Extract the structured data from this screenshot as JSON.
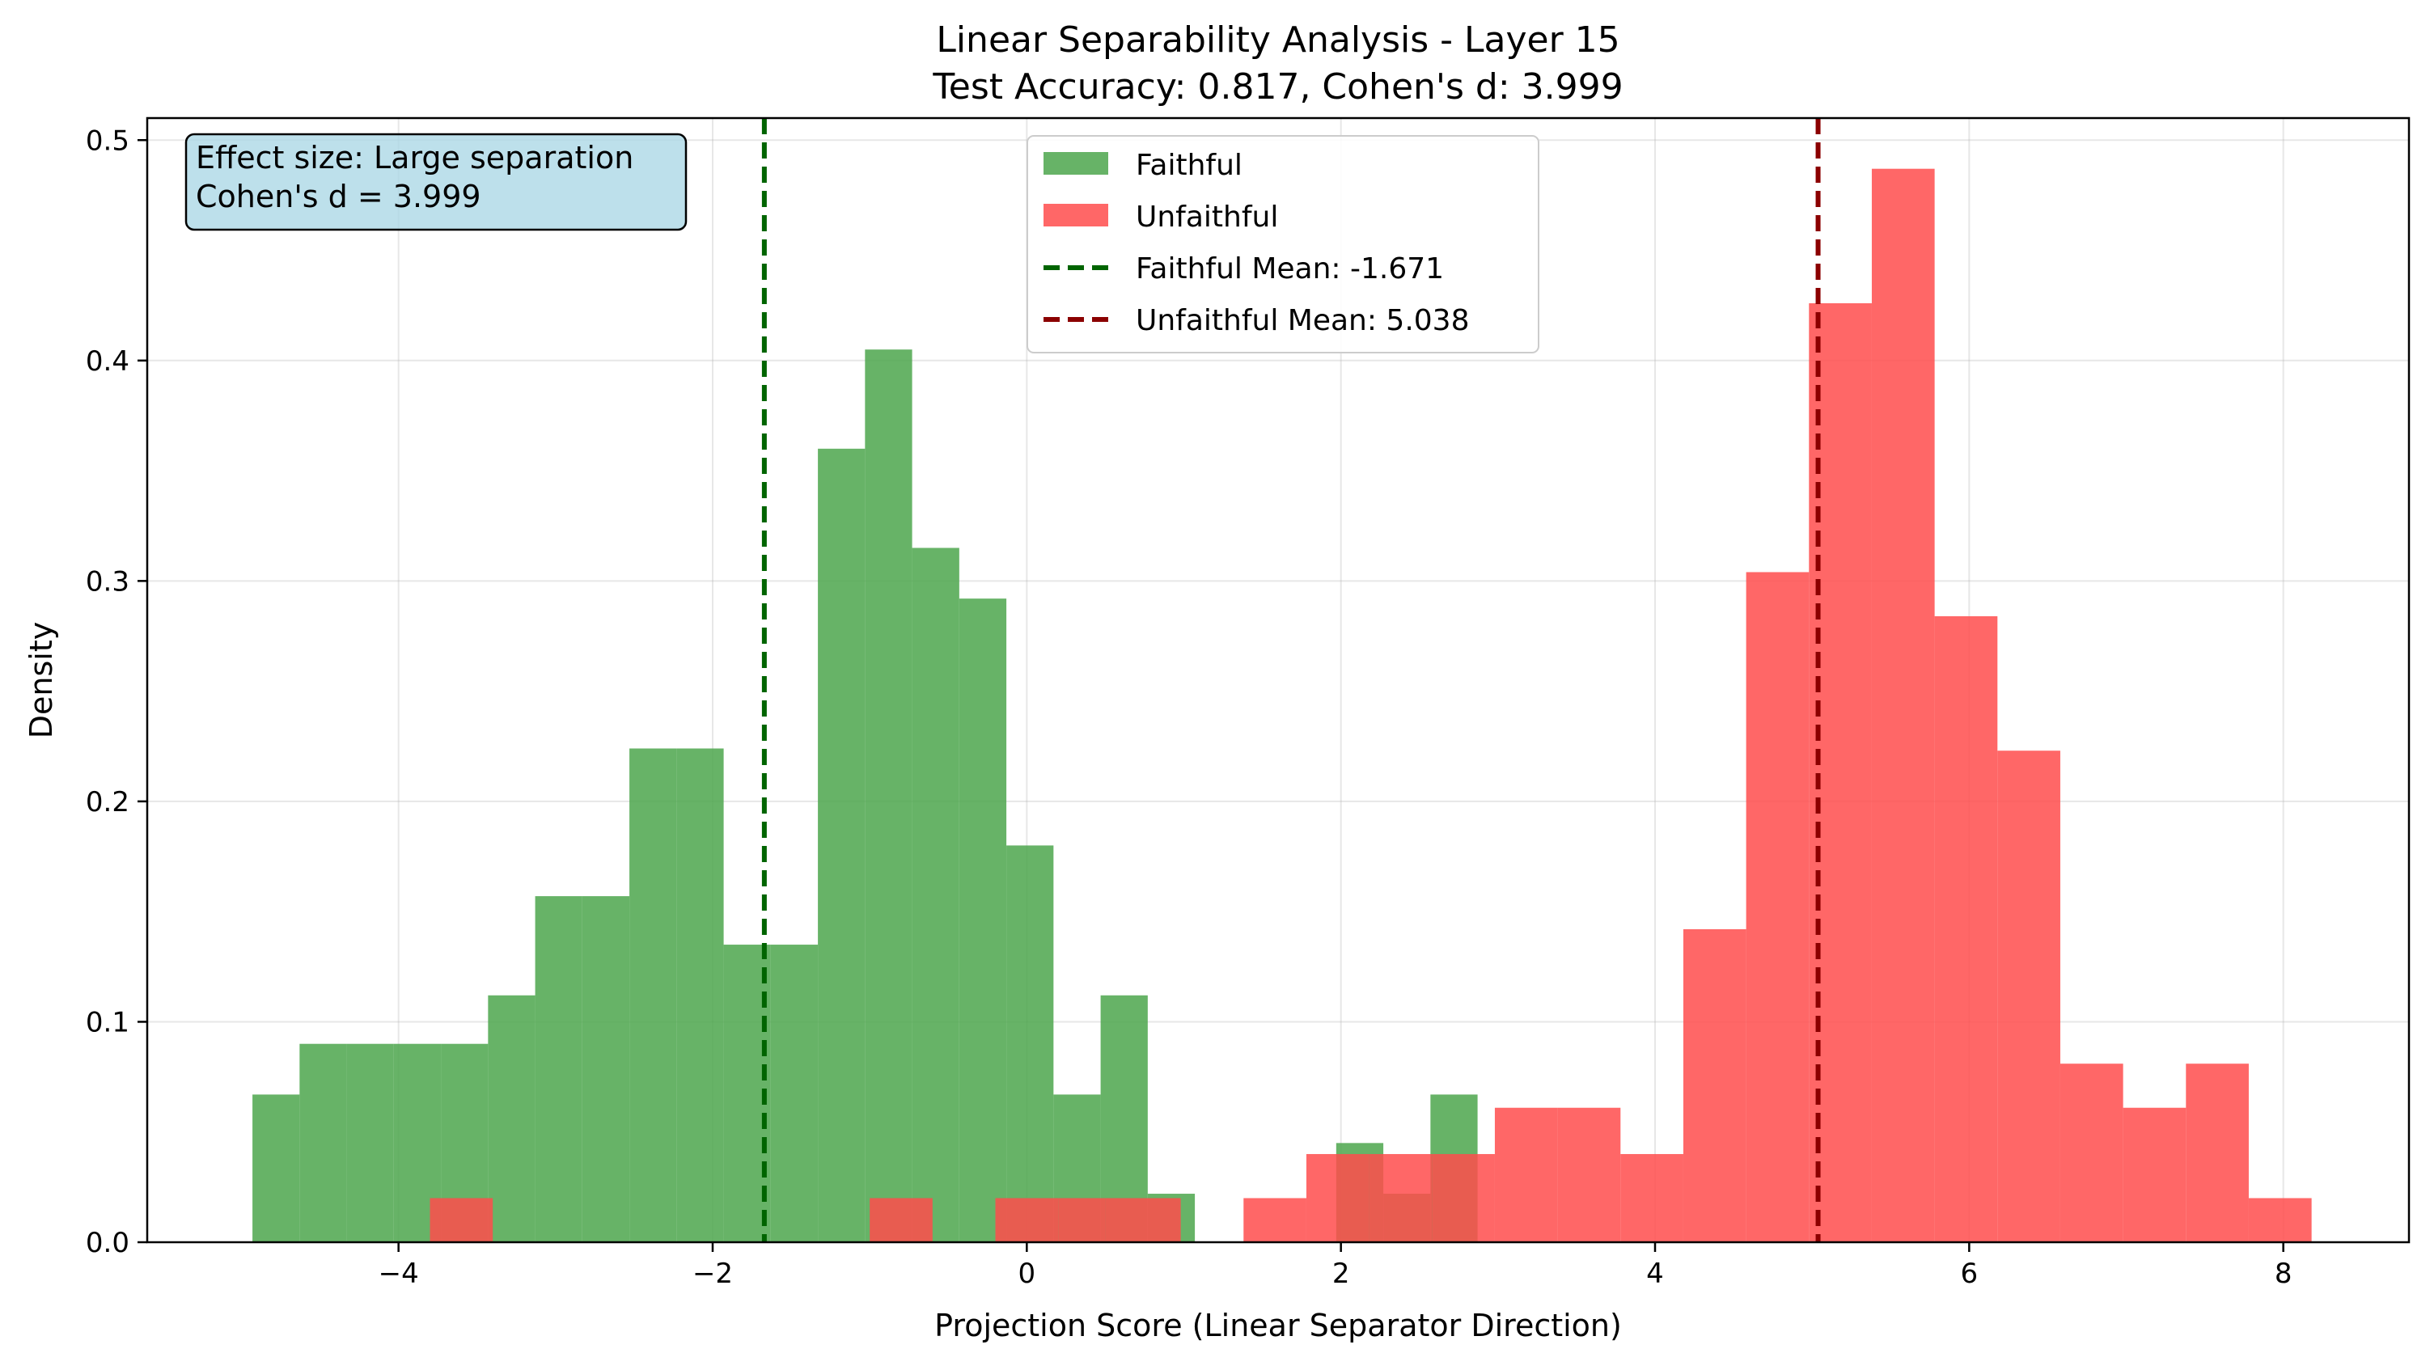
{
  "chart_data": {
    "type": "histogram",
    "title_line1": "Linear Separability Analysis - Layer 15",
    "title_line2": "Test Accuracy: 0.817, Cohen's d: 3.999",
    "xlabel": "Projection Score (Linear Separator Direction)",
    "ylabel": "Density",
    "xlim": [
      -5.6,
      8.8
    ],
    "ylim": [
      0,
      0.51
    ],
    "xticks": [
      -4,
      -2,
      0,
      2,
      4,
      6,
      8
    ],
    "xtick_labels": [
      "−4",
      "−2",
      "0",
      "2",
      "4",
      "6",
      "8"
    ],
    "yticks": [
      0.0,
      0.1,
      0.2,
      0.3,
      0.4,
      0.5
    ],
    "ytick_labels": [
      "0.0",
      "0.1",
      "0.2",
      "0.3",
      "0.4",
      "0.5"
    ],
    "grid": true,
    "legend_position": "top-center",
    "series": [
      {
        "name": "Faithful",
        "color": "#4ca64c",
        "bins": [
          {
            "x0": -4.93,
            "x1": -4.63,
            "density": 0.067
          },
          {
            "x0": -4.63,
            "x1": -4.33,
            "density": 0.09
          },
          {
            "x0": -4.33,
            "x1": -4.03,
            "density": 0.09
          },
          {
            "x0": -4.03,
            "x1": -3.73,
            "density": 0.09
          },
          {
            "x0": -3.73,
            "x1": -3.43,
            "density": 0.09
          },
          {
            "x0": -3.43,
            "x1": -3.13,
            "density": 0.112
          },
          {
            "x0": -3.13,
            "x1": -2.83,
            "density": 0.157
          },
          {
            "x0": -2.83,
            "x1": -2.53,
            "density": 0.157
          },
          {
            "x0": -2.53,
            "x1": -2.23,
            "density": 0.224
          },
          {
            "x0": -2.23,
            "x1": -1.93,
            "density": 0.224
          },
          {
            "x0": -1.93,
            "x1": -1.63,
            "density": 0.135
          },
          {
            "x0": -1.63,
            "x1": -1.33,
            "density": 0.135
          },
          {
            "x0": -1.33,
            "x1": -1.03,
            "density": 0.36
          },
          {
            "x0": -1.03,
            "x1": -0.73,
            "density": 0.405
          },
          {
            "x0": -0.73,
            "x1": -0.43,
            "density": 0.315
          },
          {
            "x0": -0.43,
            "x1": -0.13,
            "density": 0.292
          },
          {
            "x0": -0.13,
            "x1": 0.17,
            "density": 0.18
          },
          {
            "x0": 0.17,
            "x1": 0.47,
            "density": 0.067
          },
          {
            "x0": 0.47,
            "x1": 0.77,
            "density": 0.112
          },
          {
            "x0": 0.77,
            "x1": 1.07,
            "density": 0.022
          },
          {
            "x0": 1.07,
            "x1": 1.37,
            "density": 0.0
          },
          {
            "x0": 1.37,
            "x1": 1.67,
            "density": 0.0
          },
          {
            "x0": 1.67,
            "x1": 1.97,
            "density": 0.0
          },
          {
            "x0": 1.97,
            "x1": 2.27,
            "density": 0.045
          },
          {
            "x0": 2.27,
            "x1": 2.57,
            "density": 0.022
          },
          {
            "x0": 2.57,
            "x1": 2.87,
            "density": 0.067
          }
        ]
      },
      {
        "name": "Unfaithful",
        "color": "#ff4c4c",
        "bins": [
          {
            "x0": -3.8,
            "x1": -3.4,
            "density": 0.02
          },
          {
            "x0": -1.0,
            "x1": -0.6,
            "density": 0.02
          },
          {
            "x0": -0.2,
            "x1": 0.2,
            "density": 0.02
          },
          {
            "x0": 0.2,
            "x1": 0.5,
            "density": 0.02
          },
          {
            "x0": 0.5,
            "x1": 0.98,
            "density": 0.02
          },
          {
            "x0": 1.38,
            "x1": 1.78,
            "density": 0.02
          },
          {
            "x0": 1.78,
            "x1": 2.18,
            "density": 0.04
          },
          {
            "x0": 2.18,
            "x1": 2.58,
            "density": 0.04
          },
          {
            "x0": 2.58,
            "x1": 2.98,
            "density": 0.04
          },
          {
            "x0": 2.98,
            "x1": 3.38,
            "density": 0.061
          },
          {
            "x0": 3.38,
            "x1": 3.78,
            "density": 0.061
          },
          {
            "x0": 3.78,
            "x1": 4.18,
            "density": 0.04
          },
          {
            "x0": 4.18,
            "x1": 4.58,
            "density": 0.142
          },
          {
            "x0": 4.58,
            "x1": 4.98,
            "density": 0.304
          },
          {
            "x0": 4.98,
            "x1": 5.38,
            "density": 0.426
          },
          {
            "x0": 5.38,
            "x1": 5.78,
            "density": 0.487
          },
          {
            "x0": 5.78,
            "x1": 6.18,
            "density": 0.284
          },
          {
            "x0": 6.18,
            "x1": 6.58,
            "density": 0.223
          },
          {
            "x0": 6.58,
            "x1": 6.98,
            "density": 0.081
          },
          {
            "x0": 6.98,
            "x1": 7.38,
            "density": 0.061
          },
          {
            "x0": 7.38,
            "x1": 7.78,
            "density": 0.081
          },
          {
            "x0": 7.78,
            "x1": 8.18,
            "density": 0.02
          }
        ]
      }
    ],
    "mean_lines": [
      {
        "name": "Faithful Mean: -1.671",
        "x": -1.671,
        "color": "#006400"
      },
      {
        "name": "Unfaithful Mean: 5.038",
        "x": 5.038,
        "color": "#8b0000"
      }
    ],
    "annotation": {
      "line1": "Effect size: Large separation",
      "line2": "Cohen's d = 3.999",
      "background": "#add8e6"
    }
  }
}
